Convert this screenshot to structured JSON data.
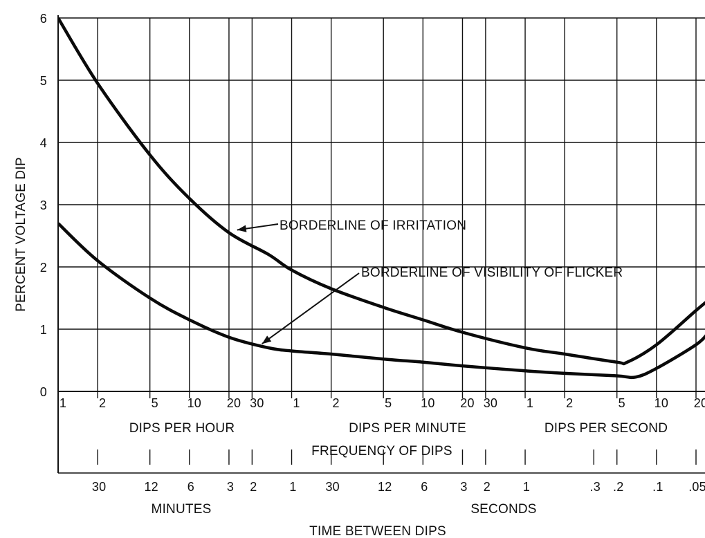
{
  "chart_data": {
    "type": "line",
    "title": "",
    "ylabel": "PERCENT VOLTAGE DIP",
    "ylim": [
      0,
      6
    ],
    "yticks": [
      "0",
      "1",
      "2",
      "3",
      "4",
      "5",
      "6"
    ],
    "x_scale": "log",
    "x_unit": "dips per hour",
    "xlim": [
      1,
      72000
    ],
    "freq_ticks": [
      {
        "label": "1",
        "value": 1
      },
      {
        "label": "2",
        "value": 2
      },
      {
        "label": "5",
        "value": 5
      },
      {
        "label": "10",
        "value": 10
      },
      {
        "label": "20",
        "value": 20
      },
      {
        "label": "30",
        "value": 30
      },
      {
        "label": "1",
        "value": 60
      },
      {
        "label": "2",
        "value": 120
      },
      {
        "label": "5",
        "value": 300
      },
      {
        "label": "10",
        "value": 600
      },
      {
        "label": "20",
        "value": 1200
      },
      {
        "label": "30",
        "value": 1800
      },
      {
        "label": "1",
        "value": 3600
      },
      {
        "label": "2",
        "value": 7200
      },
      {
        "label": "5",
        "value": 18000
      },
      {
        "label": "10",
        "value": 36000
      },
      {
        "label": "20",
        "value": 72000
      }
    ],
    "freq_group_labels": {
      "per_hour": "DIPS PER HOUR",
      "per_minute": "DIPS PER MINUTE",
      "per_second": "DIPS PER SECOND"
    },
    "freq_axis_label": "FREQUENCY OF DIPS",
    "time_ticks": [
      {
        "label": "30",
        "value": 2
      },
      {
        "label": "12",
        "value": 5
      },
      {
        "label": "6",
        "value": 10
      },
      {
        "label": "3",
        "value": 20
      },
      {
        "label": "2",
        "value": 30
      },
      {
        "label": "1",
        "value": 60
      },
      {
        "label": "30",
        "value": 120
      },
      {
        "label": "12",
        "value": 300
      },
      {
        "label": "6",
        "value": 600
      },
      {
        "label": "3",
        "value": 1200
      },
      {
        "label": "2",
        "value": 1800
      },
      {
        "label": "1",
        "value": 3600
      },
      {
        "label": ".3",
        "value": 12000
      },
      {
        "label": ".2",
        "value": 18000
      },
      {
        "label": ".1",
        "value": 36000
      },
      {
        "label": ".05",
        "value": 72000
      }
    ],
    "time_group_labels": {
      "minutes": "MINUTES",
      "seconds": "SECONDS"
    },
    "time_axis_label": "TIME BETWEEN DIPS",
    "grid": true,
    "series": [
      {
        "name": "BORDERLINE OF IRRITATION",
        "points": [
          [
            1,
            6.0
          ],
          [
            2,
            4.95
          ],
          [
            5,
            3.8
          ],
          [
            10,
            3.1
          ],
          [
            20,
            2.55
          ],
          [
            40,
            2.2
          ],
          [
            60,
            1.95
          ],
          [
            120,
            1.65
          ],
          [
            300,
            1.35
          ],
          [
            600,
            1.15
          ],
          [
            1200,
            0.95
          ],
          [
            3600,
            0.7
          ],
          [
            7200,
            0.6
          ],
          [
            18000,
            0.47
          ],
          [
            21600,
            0.47
          ],
          [
            36000,
            0.75
          ],
          [
            72000,
            1.3
          ],
          [
            90000,
            1.47
          ]
        ]
      },
      {
        "name": "BORDERLINE OF VISIBILITY OF FLICKER",
        "points": [
          [
            1,
            2.7
          ],
          [
            2,
            2.1
          ],
          [
            5,
            1.5
          ],
          [
            10,
            1.15
          ],
          [
            20,
            0.87
          ],
          [
            40,
            0.7
          ],
          [
            60,
            0.65
          ],
          [
            120,
            0.6
          ],
          [
            300,
            0.52
          ],
          [
            600,
            0.47
          ],
          [
            1200,
            0.41
          ],
          [
            3600,
            0.33
          ],
          [
            7200,
            0.29
          ],
          [
            18000,
            0.25
          ],
          [
            25000,
            0.23
          ],
          [
            36000,
            0.37
          ],
          [
            72000,
            0.75
          ],
          [
            90000,
            0.95
          ]
        ]
      }
    ]
  }
}
